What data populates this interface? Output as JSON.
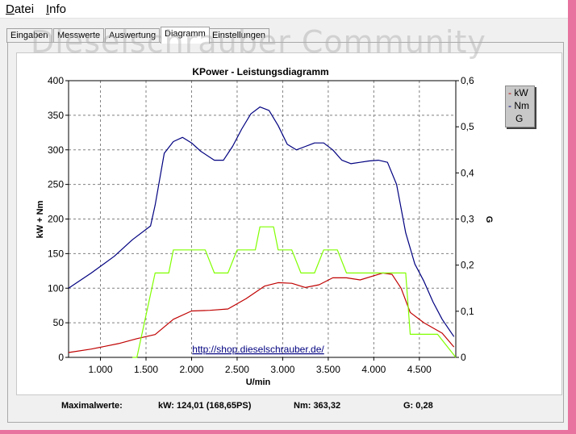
{
  "menu": {
    "items": [
      {
        "label": "Datei",
        "accel": "D",
        "rest": "atei"
      },
      {
        "label": "Info",
        "accel": "I",
        "rest": "nfo"
      }
    ]
  },
  "tabs": [
    {
      "label": "Eingaben",
      "active": false
    },
    {
      "label": "Messwerte",
      "active": false
    },
    {
      "label": "Auswertung",
      "active": false
    },
    {
      "label": "Diagramm",
      "active": true
    },
    {
      "label": "Einstellungen",
      "active": false
    }
  ],
  "watermark": "Dieselschrauber Community",
  "legend": {
    "items": [
      {
        "label": "kW",
        "color": "#c00000"
      },
      {
        "label": "Nm",
        "color": "#000080"
      },
      {
        "label": "G",
        "color": "#80ff00"
      }
    ]
  },
  "link_text": "http://shop.dieselschrauber.de/",
  "footer": {
    "label": "Maximalwerte:",
    "kw": "kW: 124,01 (168,65PS)",
    "nm": "Nm: 363,32",
    "g": "G: 0,28"
  },
  "chart_data": {
    "type": "line",
    "title": "KPower - Leistungsdiagramm",
    "xlabel": "U/min",
    "ylabel": "kW + Nm",
    "y2label": "G",
    "xlim": [
      650,
      4900
    ],
    "ylim": [
      0,
      400
    ],
    "y2lim": [
      0,
      0.6
    ],
    "x_ticks": [
      1000,
      1500,
      2000,
      2500,
      3000,
      3500,
      4000,
      4500
    ],
    "x_tick_labels": [
      "1.000",
      "1.500",
      "2.000",
      "2.500",
      "3.000",
      "3.500",
      "4.000",
      "4.500"
    ],
    "y_ticks": [
      0,
      50,
      100,
      150,
      200,
      250,
      300,
      350,
      400
    ],
    "y_tick_labels": [
      "0",
      "50",
      "100",
      "150",
      "200",
      "250",
      "300",
      "350",
      "400"
    ],
    "y2_ticks": [
      0,
      0.1,
      0.2,
      0.3,
      0.4,
      0.5,
      0.6
    ],
    "y2_tick_labels": [
      "0",
      "0,1",
      "0,2",
      "0,3",
      "0,4",
      "0,5",
      "0,6"
    ],
    "grid": true,
    "series": [
      {
        "name": "Nm",
        "color": "#000080",
        "axis": "left",
        "x": [
          650,
          900,
          1150,
          1350,
          1550,
          1600,
          1700,
          1800,
          1900,
          2000,
          2100,
          2250,
          2350,
          2450,
          2550,
          2650,
          2750,
          2850,
          2950,
          3050,
          3150,
          3250,
          3350,
          3450,
          3550,
          3650,
          3750,
          3850,
          3950,
          4050,
          4150,
          4250,
          4350,
          4450,
          4550,
          4650,
          4750,
          4880
        ],
        "y": [
          100,
          122,
          146,
          170,
          190,
          220,
          295,
          312,
          318,
          310,
          298,
          285,
          285,
          305,
          330,
          352,
          362,
          357,
          335,
          308,
          300,
          305,
          310,
          310,
          300,
          285,
          280,
          282,
          284,
          285,
          282,
          250,
          180,
          135,
          110,
          80,
          55,
          30
        ]
      },
      {
        "name": "kW",
        "color": "#c00000",
        "axis": "left",
        "x": [
          650,
          900,
          1200,
          1400,
          1600,
          1800,
          2000,
          2200,
          2400,
          2600,
          2800,
          2950,
          3100,
          3250,
          3400,
          3550,
          3700,
          3850,
          4000,
          4100,
          4200,
          4300,
          4400,
          4550,
          4750,
          4880
        ],
        "y": [
          7,
          12,
          20,
          27,
          33,
          55,
          67,
          68,
          70,
          85,
          103,
          108,
          107,
          101,
          105,
          115,
          115,
          112,
          118,
          122,
          120,
          100,
          65,
          50,
          35,
          15
        ]
      },
      {
        "name": "G",
        "color": "#80ff00",
        "axis": "right",
        "x": [
          1350,
          1400,
          1600,
          1750,
          1800,
          2150,
          2250,
          2400,
          2500,
          2700,
          2750,
          2900,
          2950,
          3100,
          3200,
          3350,
          3450,
          3600,
          3700,
          4350,
          4400,
          4700,
          4900
        ],
        "y": [
          0,
          0.0,
          0.183,
          0.183,
          0.233,
          0.233,
          0.183,
          0.183,
          0.233,
          0.233,
          0.283,
          0.283,
          0.233,
          0.233,
          0.183,
          0.183,
          0.233,
          0.233,
          0.183,
          0.183,
          0.05,
          0.05,
          0.0
        ]
      }
    ]
  }
}
